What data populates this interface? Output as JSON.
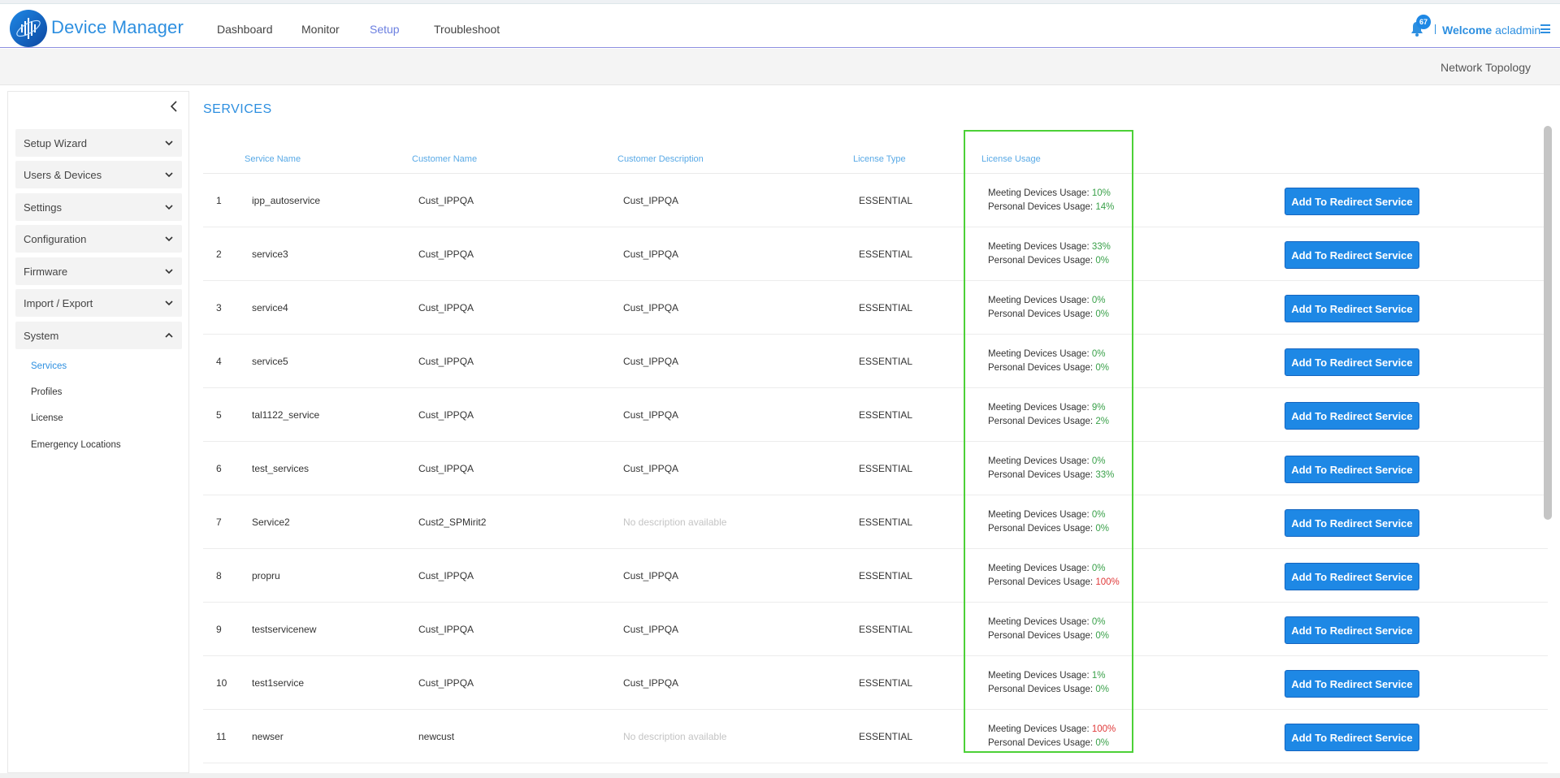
{
  "app": {
    "title": "Device Manager",
    "brand_color": "#2d8fe0",
    "notifications": "67",
    "welcome_label": "Welcome",
    "username": "acladmin"
  },
  "nav": [
    {
      "label": "Dashboard",
      "active": false
    },
    {
      "label": "Monitor",
      "active": false
    },
    {
      "label": "Setup",
      "active": true
    },
    {
      "label": "Troubleshoot",
      "active": false
    }
  ],
  "subbar": {
    "network_topology": "Network Topology"
  },
  "sidebar": {
    "groups": [
      {
        "label": "Setup Wizard",
        "icon": "chevron-down-icon"
      },
      {
        "label": "Users & Devices",
        "icon": "chevron-down-icon"
      },
      {
        "label": "Settings",
        "icon": "chevron-down-icon"
      },
      {
        "label": "Configuration",
        "icon": "chevron-down-icon"
      },
      {
        "label": "Firmware",
        "icon": "chevron-down-icon"
      },
      {
        "label": "Import / Export",
        "icon": "chevron-down-icon"
      },
      {
        "label": "System",
        "icon": "chevron-up-icon"
      }
    ],
    "system_items": [
      {
        "label": "Services",
        "active": true
      },
      {
        "label": "Profiles",
        "active": false
      },
      {
        "label": "License",
        "active": false
      },
      {
        "label": "Emergency Locations",
        "active": false
      }
    ]
  },
  "main": {
    "title": "SERVICES",
    "columns": {
      "service_name": "Service Name",
      "customer_name": "Customer Name",
      "customer_description": "Customer Description",
      "license_type": "License Type",
      "license_usage": "License Usage"
    },
    "meeting_label": "Meeting Devices Usage:",
    "personal_label": "Personal Devices Usage:",
    "button_label": "Add To Redirect Service",
    "rows": [
      {
        "num": "1",
        "service": "ipp_autoservice",
        "customer": "Cust_IPPQA",
        "description": "Cust_IPPQA",
        "has_desc": true,
        "license": "ESSENTIAL",
        "meeting": "10%",
        "meeting_status": "g",
        "personal": "14%",
        "personal_status": "g"
      },
      {
        "num": "2",
        "service": "service3",
        "customer": "Cust_IPPQA",
        "description": "Cust_IPPQA",
        "has_desc": true,
        "license": "ESSENTIAL",
        "meeting": "33%",
        "meeting_status": "g",
        "personal": "0%",
        "personal_status": "g"
      },
      {
        "num": "3",
        "service": "service4",
        "customer": "Cust_IPPQA",
        "description": "Cust_IPPQA",
        "has_desc": true,
        "license": "ESSENTIAL",
        "meeting": "0%",
        "meeting_status": "g",
        "personal": "0%",
        "personal_status": "g"
      },
      {
        "num": "4",
        "service": "service5",
        "customer": "Cust_IPPQA",
        "description": "Cust_IPPQA",
        "has_desc": true,
        "license": "ESSENTIAL",
        "meeting": "0%",
        "meeting_status": "g",
        "personal": "0%",
        "personal_status": "g"
      },
      {
        "num": "5",
        "service": "tal1122_service",
        "customer": "Cust_IPPQA",
        "description": "Cust_IPPQA",
        "has_desc": true,
        "license": "ESSENTIAL",
        "meeting": "9%",
        "meeting_status": "g",
        "personal": "2%",
        "personal_status": "g"
      },
      {
        "num": "6",
        "service": "test_services",
        "customer": "Cust_IPPQA",
        "description": "Cust_IPPQA",
        "has_desc": true,
        "license": "ESSENTIAL",
        "meeting": "0%",
        "meeting_status": "g",
        "personal": "33%",
        "personal_status": "g"
      },
      {
        "num": "7",
        "service": "Service2",
        "customer": "Cust2_SPMirit2",
        "description": "No description available",
        "has_desc": false,
        "license": "ESSENTIAL",
        "meeting": "0%",
        "meeting_status": "g",
        "personal": "0%",
        "personal_status": "g"
      },
      {
        "num": "8",
        "service": "propru",
        "customer": "Cust_IPPQA",
        "description": "Cust_IPPQA",
        "has_desc": true,
        "license": "ESSENTIAL",
        "meeting": "0%",
        "meeting_status": "g",
        "personal": "100%",
        "personal_status": "r"
      },
      {
        "num": "9",
        "service": "testservicenew",
        "customer": "Cust_IPPQA",
        "description": "Cust_IPPQA",
        "has_desc": true,
        "license": "ESSENTIAL",
        "meeting": "0%",
        "meeting_status": "g",
        "personal": "0%",
        "personal_status": "g"
      },
      {
        "num": "10",
        "service": "test1service",
        "customer": "Cust_IPPQA",
        "description": "Cust_IPPQA",
        "has_desc": true,
        "license": "ESSENTIAL",
        "meeting": "1%",
        "meeting_status": "g",
        "personal": "0%",
        "personal_status": "g"
      },
      {
        "num": "11",
        "service": "newser",
        "customer": "newcust",
        "description": "No description available",
        "has_desc": false,
        "license": "ESSENTIAL",
        "meeting": "100%",
        "meeting_status": "r",
        "personal": "0%",
        "personal_status": "g"
      }
    ]
  },
  "colors": {
    "accent": "#2d8fe0",
    "button": "#1e88e5",
    "ok": "#3aa14a",
    "warn": "#e03a3a",
    "highlight": "#4cd137"
  }
}
